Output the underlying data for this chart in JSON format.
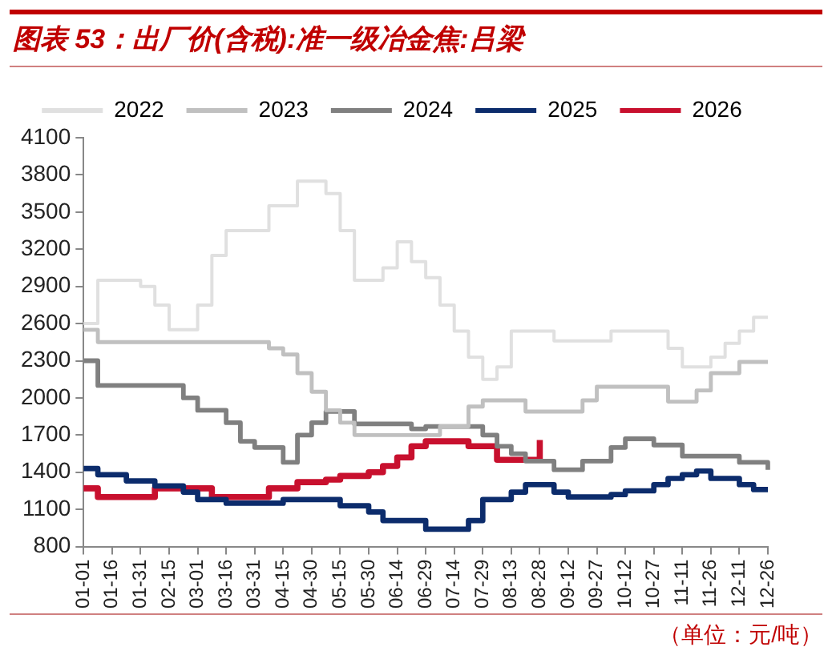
{
  "chart_data": {
    "type": "step",
    "title": "图表 53：出厂价(含税):准一级冶金焦:吕梁",
    "categories": [
      "01-01",
      null,
      "01-16",
      null,
      "01-31",
      null,
      "02-15",
      null,
      "03-01",
      null,
      "03-16",
      null,
      "03-31",
      null,
      "04-15",
      null,
      "04-30",
      null,
      "05-15",
      null,
      "05-30",
      null,
      "06-14",
      null,
      "06-29",
      null,
      "07-14",
      null,
      "07-29",
      null,
      "08-13",
      null,
      "08-28",
      null,
      "09-12",
      null,
      "09-27",
      null,
      "10-12",
      null,
      "10-27",
      null,
      "11-11",
      null,
      "11-26",
      null,
      "12-11",
      null,
      "12-26"
    ],
    "series": [
      {
        "name": "2022",
        "color": "#e0e0e0",
        "values": [
          2600,
          2950,
          2950,
          2950,
          2900,
          2750,
          2550,
          2550,
          2750,
          3150,
          3350,
          3350,
          3350,
          3550,
          3550,
          3750,
          3750,
          3650,
          3350,
          2950,
          2950,
          3050,
          3260,
          3100,
          2970,
          2750,
          2540,
          2330,
          2150,
          2250,
          2540,
          2540,
          2540,
          2460,
          2460,
          2460,
          2460,
          2540,
          2540,
          2540,
          2540,
          2400,
          2250,
          2250,
          2330,
          2440,
          2540,
          2650,
          2650
        ]
      },
      {
        "name": "2023",
        "color": "#c0c0c0",
        "values": [
          2550,
          2450,
          2450,
          2450,
          2450,
          2450,
          2450,
          2450,
          2450,
          2450,
          2450,
          2450,
          2450,
          2400,
          2350,
          2200,
          2050,
          1900,
          1800,
          1700,
          1700,
          1700,
          1700,
          1700,
          1700,
          1770,
          1770,
          1930,
          1980,
          1980,
          1980,
          1890,
          1890,
          1890,
          1890,
          1980,
          2090,
          2090,
          2090,
          2090,
          2090,
          1970,
          1970,
          2060,
          2200,
          2200,
          2290,
          2290,
          2290
        ]
      },
      {
        "name": "2024",
        "color": "#808080",
        "values": [
          2300,
          2100,
          2100,
          2100,
          2100,
          2100,
          2100,
          2000,
          1900,
          1900,
          1800,
          1650,
          1600,
          1600,
          1480,
          1700,
          1800,
          1890,
          1890,
          1790,
          1790,
          1790,
          1790,
          1750,
          1770,
          1770,
          1770,
          1770,
          1700,
          1610,
          1550,
          1490,
          1490,
          1420,
          1420,
          1490,
          1490,
          1600,
          1670,
          1670,
          1620,
          1620,
          1530,
          1530,
          1530,
          1530,
          1480,
          1480,
          1420
        ]
      },
      {
        "name": "2025",
        "color": "#0c2c6c",
        "values": [
          1430,
          1380,
          1380,
          1330,
          1330,
          1290,
          1290,
          1240,
          1180,
          1180,
          1150,
          1150,
          1150,
          1150,
          1180,
          1180,
          1180,
          1180,
          1130,
          1130,
          1080,
          1010,
          1010,
          1010,
          940,
          940,
          940,
          1010,
          1180,
          1180,
          1240,
          1300,
          1300,
          1240,
          1200,
          1200,
          1200,
          1220,
          1250,
          1250,
          1300,
          1350,
          1380,
          1410,
          1350,
          1350,
          1300,
          1260,
          1260
        ]
      },
      {
        "name": "2026",
        "color": "#c8102e",
        "values": [
          1270,
          1200,
          1200,
          1200,
          1200,
          1270,
          1270,
          1270,
          1270,
          1200,
          1200,
          1200,
          1200,
          1270,
          1270,
          1320,
          1320,
          1340,
          1370,
          1370,
          1400,
          1450,
          1520,
          1610,
          1650,
          1650,
          1650,
          1610,
          1610,
          1500,
          1500,
          1500,
          1660,
          null,
          null,
          null,
          null,
          null,
          null,
          null,
          null,
          null,
          null,
          null,
          null,
          null,
          null,
          null,
          null
        ]
      }
    ],
    "ylim": [
      800,
      4100
    ],
    "yticks": [
      800,
      1100,
      1400,
      1700,
      2000,
      2300,
      2600,
      2900,
      3200,
      3500,
      3800,
      4100
    ],
    "grid": false,
    "legend": "top",
    "line_style": "solid",
    "marker": "none",
    "annotations": [
      "（单位：元/吨）"
    ]
  }
}
